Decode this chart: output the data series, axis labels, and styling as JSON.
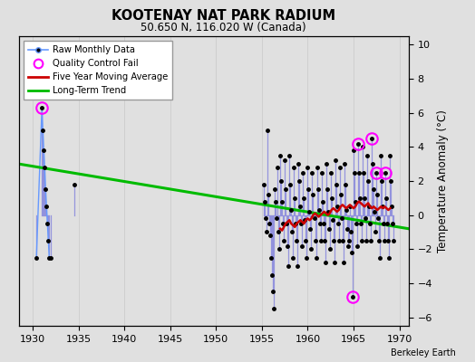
{
  "title": "KOOTENAY NAT PARK RADIUM",
  "subtitle": "50.650 N, 116.020 W (Canada)",
  "ylabel_right": "Temperature Anomaly (°C)",
  "credit": "Berkeley Earth",
  "xlim": [
    1928.5,
    1971.0
  ],
  "ylim": [
    -6.5,
    10.5
  ],
  "yticks": [
    -6,
    -4,
    -2,
    0,
    2,
    4,
    6,
    8,
    10
  ],
  "xticks": [
    1930,
    1935,
    1940,
    1945,
    1950,
    1955,
    1960,
    1965,
    1970
  ],
  "bg_color": "#e0e0e0",
  "raw_data": [
    [
      1930.4,
      -2.5
    ],
    [
      1931.0,
      6.3
    ],
    [
      1931.1,
      5.0
    ],
    [
      1931.2,
      3.8
    ],
    [
      1931.3,
      2.8
    ],
    [
      1931.4,
      1.5
    ],
    [
      1931.5,
      0.5
    ],
    [
      1931.6,
      -0.5
    ],
    [
      1931.7,
      -1.5
    ],
    [
      1931.8,
      -2.5
    ],
    [
      1932.0,
      -2.5
    ],
    [
      1934.5,
      1.8
    ],
    [
      1955.2,
      1.8
    ],
    [
      1955.3,
      0.8
    ],
    [
      1955.4,
      -0.2
    ],
    [
      1955.5,
      -1.0
    ],
    [
      1955.6,
      5.0
    ],
    [
      1955.7,
      1.2
    ],
    [
      1955.8,
      -0.5
    ],
    [
      1955.9,
      -1.2
    ],
    [
      1956.0,
      -2.5
    ],
    [
      1956.1,
      -3.5
    ],
    [
      1956.2,
      -4.5
    ],
    [
      1956.3,
      -5.5
    ],
    [
      1956.4,
      1.5
    ],
    [
      1956.5,
      0.8
    ],
    [
      1956.6,
      -0.2
    ],
    [
      1956.7,
      2.8
    ],
    [
      1956.8,
      -1.0
    ],
    [
      1956.9,
      -2.0
    ],
    [
      1957.0,
      3.5
    ],
    [
      1957.1,
      2.0
    ],
    [
      1957.2,
      0.8
    ],
    [
      1957.3,
      -0.5
    ],
    [
      1957.4,
      -1.5
    ],
    [
      1957.5,
      3.2
    ],
    [
      1957.6,
      1.5
    ],
    [
      1957.7,
      -0.5
    ],
    [
      1957.8,
      -1.8
    ],
    [
      1957.9,
      -3.0
    ],
    [
      1958.0,
      3.5
    ],
    [
      1958.1,
      1.8
    ],
    [
      1958.2,
      0.3
    ],
    [
      1958.3,
      -1.0
    ],
    [
      1958.4,
      -2.5
    ],
    [
      1958.5,
      2.8
    ],
    [
      1958.6,
      1.0
    ],
    [
      1958.7,
      -0.5
    ],
    [
      1958.8,
      -1.5
    ],
    [
      1958.9,
      -3.0
    ],
    [
      1959.0,
      3.0
    ],
    [
      1959.1,
      2.0
    ],
    [
      1959.2,
      0.5
    ],
    [
      1959.3,
      -0.5
    ],
    [
      1959.4,
      -1.8
    ],
    [
      1959.5,
      2.5
    ],
    [
      1959.6,
      1.0
    ],
    [
      1959.7,
      -0.3
    ],
    [
      1959.8,
      -1.5
    ],
    [
      1959.9,
      -2.5
    ],
    [
      1960.0,
      2.8
    ],
    [
      1960.1,
      1.5
    ],
    [
      1960.2,
      0.2
    ],
    [
      1960.3,
      -0.8
    ],
    [
      1960.4,
      -2.0
    ],
    [
      1960.5,
      2.5
    ],
    [
      1960.6,
      1.2
    ],
    [
      1960.7,
      -0.2
    ],
    [
      1960.8,
      -1.5
    ],
    [
      1960.9,
      -2.5
    ],
    [
      1961.0,
      2.8
    ],
    [
      1961.1,
      1.5
    ],
    [
      1961.2,
      0.3
    ],
    [
      1961.3,
      -0.5
    ],
    [
      1961.4,
      -1.5
    ],
    [
      1961.5,
      2.5
    ],
    [
      1961.6,
      0.8
    ],
    [
      1961.7,
      -0.5
    ],
    [
      1961.8,
      -1.5
    ],
    [
      1961.9,
      -2.8
    ],
    [
      1962.0,
      3.0
    ],
    [
      1962.1,
      1.5
    ],
    [
      1962.2,
      0.2
    ],
    [
      1962.3,
      -0.8
    ],
    [
      1962.4,
      -2.0
    ],
    [
      1962.5,
      2.5
    ],
    [
      1962.6,
      1.0
    ],
    [
      1962.7,
      -0.3
    ],
    [
      1962.8,
      -1.5
    ],
    [
      1962.9,
      -2.8
    ],
    [
      1963.0,
      3.2
    ],
    [
      1963.1,
      1.8
    ],
    [
      1963.2,
      0.5
    ],
    [
      1963.3,
      -0.5
    ],
    [
      1963.4,
      -1.5
    ],
    [
      1963.5,
      2.8
    ],
    [
      1963.6,
      1.2
    ],
    [
      1963.7,
      -0.2
    ],
    [
      1963.8,
      -1.5
    ],
    [
      1963.9,
      -2.8
    ],
    [
      1964.0,
      3.0
    ],
    [
      1964.1,
      1.8
    ],
    [
      1964.2,
      0.3
    ],
    [
      1964.3,
      -0.8
    ],
    [
      1964.4,
      -1.8
    ],
    [
      1964.5,
      -1.5
    ],
    [
      1964.6,
      0.5
    ],
    [
      1964.7,
      -1.0
    ],
    [
      1964.8,
      -2.2
    ],
    [
      1964.9,
      -4.8
    ],
    [
      1965.0,
      3.8
    ],
    [
      1965.1,
      2.5
    ],
    [
      1965.2,
      0.8
    ],
    [
      1965.3,
      -0.5
    ],
    [
      1965.4,
      -1.8
    ],
    [
      1965.5,
      4.2
    ],
    [
      1965.6,
      2.5
    ],
    [
      1965.7,
      1.0
    ],
    [
      1965.8,
      -0.5
    ],
    [
      1965.9,
      -1.5
    ],
    [
      1966.0,
      4.0
    ],
    [
      1966.1,
      2.5
    ],
    [
      1966.2,
      1.0
    ],
    [
      1966.3,
      -0.2
    ],
    [
      1966.4,
      -1.5
    ],
    [
      1966.5,
      3.5
    ],
    [
      1966.6,
      2.0
    ],
    [
      1966.7,
      0.5
    ],
    [
      1966.8,
      -0.5
    ],
    [
      1966.9,
      -1.5
    ],
    [
      1967.0,
      4.5
    ],
    [
      1967.1,
      3.0
    ],
    [
      1967.2,
      1.5
    ],
    [
      1967.3,
      0.2
    ],
    [
      1967.4,
      -1.0
    ],
    [
      1967.5,
      2.5
    ],
    [
      1967.6,
      1.2
    ],
    [
      1967.7,
      -0.2
    ],
    [
      1967.8,
      -1.5
    ],
    [
      1967.9,
      -2.5
    ],
    [
      1968.0,
      3.5
    ],
    [
      1968.1,
      2.0
    ],
    [
      1968.2,
      0.5
    ],
    [
      1968.3,
      -0.5
    ],
    [
      1968.4,
      -1.5
    ],
    [
      1968.5,
      2.5
    ],
    [
      1968.6,
      1.0
    ],
    [
      1968.7,
      -0.5
    ],
    [
      1968.8,
      -1.5
    ],
    [
      1968.9,
      -2.5
    ],
    [
      1969.0,
      3.5
    ],
    [
      1969.1,
      2.0
    ],
    [
      1969.2,
      0.5
    ],
    [
      1969.3,
      -0.5
    ],
    [
      1969.4,
      -1.5
    ]
  ],
  "qc_fail": [
    [
      1931.0,
      6.3
    ],
    [
      1965.5,
      4.2
    ],
    [
      1967.0,
      4.5
    ],
    [
      1967.5,
      2.5
    ],
    [
      1968.5,
      2.5
    ],
    [
      1964.9,
      -4.8
    ]
  ],
  "moving_avg": [
    [
      1957.0,
      -0.8
    ],
    [
      1957.2,
      -0.9
    ],
    [
      1957.4,
      -0.7
    ],
    [
      1957.6,
      -0.5
    ],
    [
      1957.8,
      -0.4
    ],
    [
      1958.0,
      -0.3
    ],
    [
      1958.2,
      -0.5
    ],
    [
      1958.4,
      -0.6
    ],
    [
      1958.6,
      -0.7
    ],
    [
      1958.8,
      -0.5
    ],
    [
      1959.0,
      -0.4
    ],
    [
      1959.2,
      -0.3
    ],
    [
      1959.4,
      -0.4
    ],
    [
      1959.6,
      -0.5
    ],
    [
      1959.8,
      -0.3
    ],
    [
      1960.0,
      -0.2
    ],
    [
      1960.2,
      -0.3
    ],
    [
      1960.4,
      -0.2
    ],
    [
      1960.6,
      0.0
    ],
    [
      1960.8,
      0.1
    ],
    [
      1961.0,
      0.0
    ],
    [
      1961.2,
      -0.1
    ],
    [
      1961.4,
      0.0
    ],
    [
      1961.6,
      0.1
    ],
    [
      1961.8,
      0.2
    ],
    [
      1962.0,
      0.1
    ],
    [
      1962.2,
      0.0
    ],
    [
      1962.4,
      0.1
    ],
    [
      1962.6,
      0.3
    ],
    [
      1962.8,
      0.4
    ],
    [
      1963.0,
      0.3
    ],
    [
      1963.2,
      0.2
    ],
    [
      1963.4,
      0.3
    ],
    [
      1963.6,
      0.5
    ],
    [
      1963.8,
      0.6
    ],
    [
      1964.0,
      0.5
    ],
    [
      1964.2,
      0.4
    ],
    [
      1964.4,
      0.5
    ],
    [
      1964.6,
      0.6
    ],
    [
      1964.8,
      0.5
    ],
    [
      1965.0,
      0.4
    ],
    [
      1965.2,
      0.5
    ],
    [
      1965.4,
      0.7
    ],
    [
      1965.6,
      0.8
    ],
    [
      1965.8,
      0.7
    ],
    [
      1966.0,
      0.6
    ],
    [
      1966.2,
      0.5
    ],
    [
      1966.4,
      0.6
    ],
    [
      1966.6,
      0.7
    ],
    [
      1966.8,
      0.5
    ],
    [
      1967.0,
      0.4
    ],
    [
      1967.2,
      0.5
    ],
    [
      1967.4,
      0.4
    ],
    [
      1967.6,
      0.3
    ],
    [
      1967.8,
      0.4
    ],
    [
      1968.0,
      0.5
    ],
    [
      1968.2,
      0.4
    ],
    [
      1968.4,
      0.5
    ],
    [
      1968.6,
      0.4
    ],
    [
      1968.8,
      0.3
    ],
    [
      1969.0,
      0.4
    ]
  ],
  "trend_x": [
    1928.5,
    1971.0
  ],
  "trend_y": [
    3.0,
    -0.8
  ],
  "raw_color": "#6699ff",
  "dot_color": "#000000",
  "stem_color": "#8888dd",
  "qc_color": "#ff00ff",
  "ma_color": "#cc0000",
  "trend_color": "#00bb00",
  "grid_color": "#cccccc"
}
